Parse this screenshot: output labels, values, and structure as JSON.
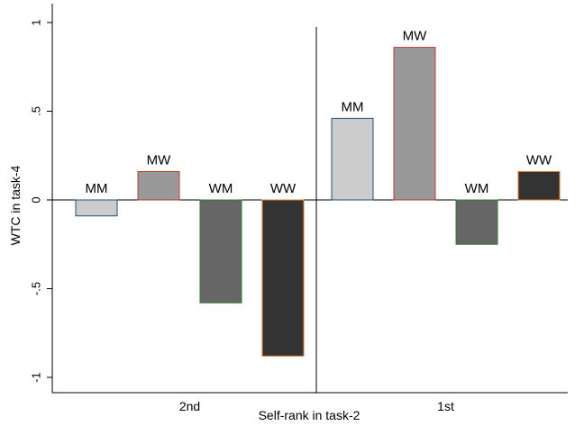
{
  "chart_data": {
    "type": "bar",
    "xlabel": "Self-rank in task-2",
    "ylabel": "WTC in task-4",
    "ylim": [
      -1.1,
      1.1
    ],
    "yticks": [
      {
        "value": 1,
        "label": "1"
      },
      {
        "value": 0.5,
        "label": ".5"
      },
      {
        "value": 0,
        "label": "0"
      },
      {
        "value": -0.5,
        "label": "-.5"
      },
      {
        "value": -1,
        "label": "-1"
      }
    ],
    "grid": false,
    "groups": [
      {
        "label": "2nd",
        "bars": [
          {
            "label": "MM",
            "value": -0.09,
            "fill": "#cccccc",
            "stroke": "#1f4e79"
          },
          {
            "label": "MW",
            "value": 0.16,
            "fill": "#999999",
            "stroke": "#c0392b"
          },
          {
            "label": "WM",
            "value": -0.58,
            "fill": "#666666",
            "stroke": "#2e7d32"
          },
          {
            "label": "WW",
            "value": -0.88,
            "fill": "#333333",
            "stroke": "#e67e22"
          }
        ]
      },
      {
        "label": "1st",
        "bars": [
          {
            "label": "MM",
            "value": 0.46,
            "fill": "#cccccc",
            "stroke": "#1f4e79"
          },
          {
            "label": "MW",
            "value": 0.86,
            "fill": "#999999",
            "stroke": "#c0392b"
          },
          {
            "label": "WM",
            "value": -0.25,
            "fill": "#666666",
            "stroke": "#2e7d32"
          },
          {
            "label": "WW",
            "value": 0.16,
            "fill": "#333333",
            "stroke": "#e67e22"
          }
        ]
      }
    ]
  }
}
